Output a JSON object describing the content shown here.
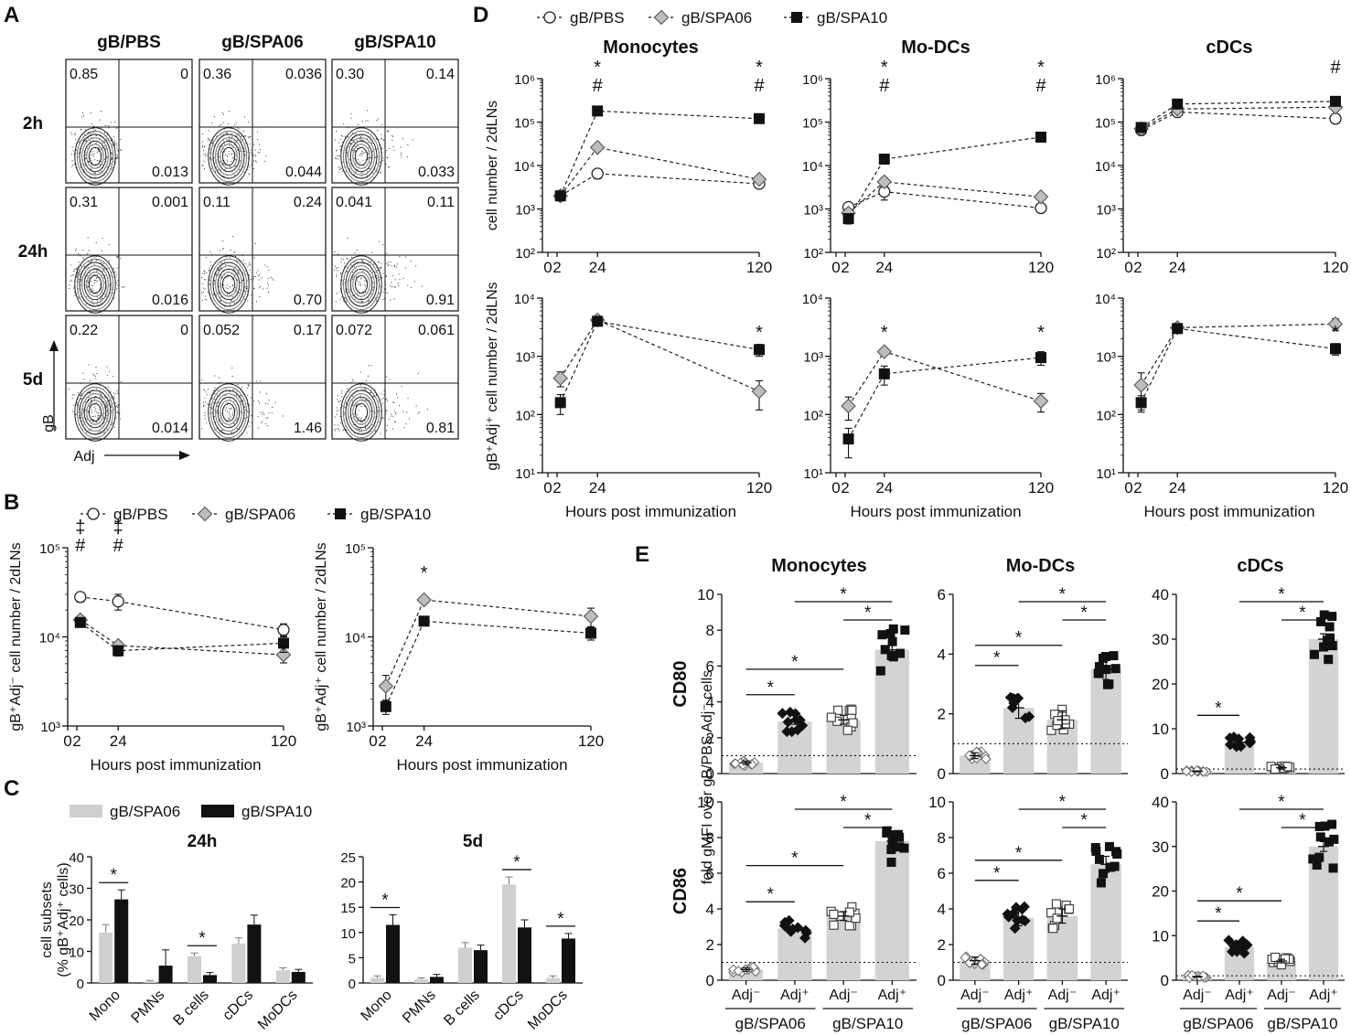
{
  "panel_letters": {
    "a": "A",
    "b": "B",
    "c": "C",
    "d": "D",
    "e": "E"
  },
  "colors": {
    "pbs": "#ffffff",
    "spa06": "#bdbdbd",
    "spa10": "#111111",
    "bar_spa06": "#cfcfcf",
    "bar_spa10": "#111111",
    "bar_e": "#d3d3d3"
  },
  "flow": {
    "groups": [
      "gB/PBS",
      "gB/SPA06",
      "gB/SPA10"
    ],
    "times": [
      "2h",
      "24h",
      "5d"
    ],
    "y_axis_label": "gB",
    "x_axis_label": "Adj",
    "quadrants": [
      [
        {
          "ul": "0.85",
          "ur": "0",
          "lr": "0.013"
        },
        {
          "ul": "0.36",
          "ur": "0.036",
          "lr": "0.044"
        },
        {
          "ul": "0.30",
          "ur": "0.14",
          "lr": "0.033"
        }
      ],
      [
        {
          "ul": "0.31",
          "ur": "0.001",
          "lr": "0.016"
        },
        {
          "ul": "0.11",
          "ur": "0.24",
          "lr": "0.70"
        },
        {
          "ul": "0.041",
          "ur": "0.11",
          "lr": "0.91"
        }
      ],
      [
        {
          "ul": "0.22",
          "ur": "0",
          "lr": "0.014"
        },
        {
          "ul": "0.052",
          "ur": "0.17",
          "lr": "1.46"
        },
        {
          "ul": "0.072",
          "ur": "0.061",
          "lr": "0.81"
        }
      ]
    ]
  },
  "legend3": [
    "gB/PBS",
    "gB/SPA06",
    "gB/SPA10"
  ],
  "legend2": [
    "gB/SPA06",
    "gB/SPA10"
  ],
  "chart_data": [
    {
      "id": "B_left",
      "type": "line",
      "xlabel": "Hours post immunization",
      "ylabel": "gB⁺Adj⁻ cell number / 2dLNs",
      "x": [
        2,
        24,
        120
      ],
      "xticks": [
        "0",
        "2",
        "24",
        "120"
      ],
      "yscale": "log",
      "ylim": [
        1000,
        100000
      ],
      "yticks": [
        "10³",
        "10⁴",
        "10⁵"
      ],
      "series": [
        {
          "name": "gB/PBS",
          "values": [
            28000,
            25000,
            12000
          ],
          "err": [
            3500,
            5000,
            2000
          ]
        },
        {
          "name": "gB/SPA06",
          "values": [
            15500,
            8000,
            6300
          ],
          "err": [
            1500,
            700,
            1200
          ]
        },
        {
          "name": "gB/SPA10",
          "values": [
            14500,
            7000,
            8500
          ],
          "err": [
            1300,
            900,
            1800
          ]
        }
      ],
      "annotations": [
        {
          "x": 2,
          "text": "‡",
          "row": 0
        },
        {
          "x": 2,
          "text": "#",
          "row": 1
        },
        {
          "x": 24,
          "text": "‡",
          "row": 0
        },
        {
          "x": 24,
          "text": "#",
          "row": 1
        }
      ]
    },
    {
      "id": "B_right",
      "type": "line",
      "xlabel": "Hours post immunization",
      "ylabel": "gB⁺Adj⁺ cell number / 2dLNs",
      "x": [
        2,
        24,
        120
      ],
      "xticks": [
        "0",
        "2",
        "24",
        "120"
      ],
      "yscale": "log",
      "ylim": [
        1000,
        100000
      ],
      "yticks": [
        "10³",
        "10⁴",
        "10⁵"
      ],
      "series": [
        {
          "name": "gB/SPA06",
          "values": [
            2800,
            26000,
            17000
          ],
          "err": [
            900,
            1500,
            4000
          ]
        },
        {
          "name": "gB/SPA10",
          "values": [
            1650,
            15000,
            11000
          ],
          "err": [
            300,
            1200,
            1800
          ]
        }
      ],
      "annotations": [
        {
          "x": 24,
          "text": "*",
          "row": 0
        }
      ]
    },
    {
      "id": "C_24h",
      "type": "bar",
      "title": "24h",
      "ylabel": "cell subsets (% gB⁺Adj⁺ cells)",
      "categories": [
        "Mono",
        "PMNs",
        "B cells",
        "cDCs",
        "MoDCs"
      ],
      "ylim": [
        0,
        40
      ],
      "yticks": [
        "0",
        "10",
        "20",
        "30",
        "40"
      ],
      "series": [
        {
          "name": "gB/SPA06",
          "values": [
            16,
            0.5,
            8.5,
            12.5,
            4
          ],
          "err": [
            2.5,
            0.3,
            1,
            1.8,
            0.8
          ]
        },
        {
          "name": "gB/SPA10",
          "values": [
            26.5,
            5.5,
            2.5,
            18.5,
            3.5
          ],
          "err": [
            3,
            5,
            0.8,
            3,
            0.8
          ]
        }
      ],
      "sig": [
        {
          "cat": 0,
          "text": "*"
        },
        {
          "cat": 2,
          "text": "*"
        }
      ]
    },
    {
      "id": "C_5d",
      "type": "bar",
      "title": "5d",
      "categories": [
        "Mono",
        "PMNs",
        "B cells",
        "cDCs",
        "MoDCs"
      ],
      "ylim": [
        0,
        25
      ],
      "yticks": [
        "0",
        "5",
        "10",
        "15",
        "20",
        "25"
      ],
      "series": [
        {
          "name": "gB/SPA06",
          "values": [
            1,
            0.7,
            7,
            19.5,
            1
          ],
          "err": [
            0.4,
            0.3,
            1,
            1.5,
            0.4
          ]
        },
        {
          "name": "gB/SPA10",
          "values": [
            11.5,
            1.2,
            6.5,
            11,
            8.8
          ],
          "err": [
            2,
            0.5,
            1,
            1.5,
            1
          ]
        }
      ],
      "sig": [
        {
          "cat": 0,
          "text": "*"
        },
        {
          "cat": 3,
          "text": "*"
        },
        {
          "cat": 4,
          "text": "*"
        }
      ]
    },
    {
      "id": "D_mono_top",
      "type": "line",
      "title": "Monocytes",
      "ylabel": "cell number / 2dLNs",
      "x": [
        2,
        24,
        120
      ],
      "yscale": "log",
      "ylim": [
        100,
        1000000
      ],
      "yticks": [
        "10²",
        "10³",
        "10⁴",
        "10⁵",
        "10⁶"
      ],
      "xticks": [
        "0",
        "2",
        "24",
        "120"
      ],
      "series": [
        {
          "name": "gB/PBS",
          "values": [
            2000,
            6500,
            3800
          ],
          "err": [
            300,
            1500,
            400
          ]
        },
        {
          "name": "gB/SPA06",
          "values": [
            2000,
            26000,
            4800
          ],
          "err": [
            300,
            2500,
            500
          ]
        },
        {
          "name": "gB/SPA10",
          "values": [
            2000,
            180000,
            120000
          ],
          "err": [
            300,
            15000,
            10000
          ]
        }
      ],
      "annotations": [
        {
          "x": 24,
          "text": "*",
          "row": 0
        },
        {
          "x": 24,
          "text": "#",
          "row": 1
        },
        {
          "x": 120,
          "text": "*",
          "row": 0
        },
        {
          "x": 120,
          "text": "#",
          "row": 1
        }
      ]
    },
    {
      "id": "D_modc_top",
      "type": "line",
      "title": "Mo-DCs",
      "x": [
        2,
        24,
        120
      ],
      "yscale": "log",
      "ylim": [
        100,
        1000000
      ],
      "yticks": [
        "10²",
        "10³",
        "10⁴",
        "10⁵",
        "10⁶"
      ],
      "xticks": [
        "0",
        "2",
        "24",
        "120"
      ],
      "series": [
        {
          "name": "gB/PBS",
          "values": [
            1100,
            2500,
            1050
          ],
          "err": [
            300,
            900,
            150
          ]
        },
        {
          "name": "gB/SPA06",
          "values": [
            800,
            4200,
            1900
          ],
          "err": [
            200,
            1000,
            300
          ]
        },
        {
          "name": "gB/SPA10",
          "values": [
            600,
            14000,
            45000
          ],
          "err": [
            150,
            2500,
            4000
          ]
        }
      ],
      "annotations": [
        {
          "x": 24,
          "text": "*",
          "row": 0
        },
        {
          "x": 24,
          "text": "#",
          "row": 1
        },
        {
          "x": 120,
          "text": "*",
          "row": 0
        },
        {
          "x": 120,
          "text": "#",
          "row": 1
        }
      ]
    },
    {
      "id": "D_cdc_top",
      "type": "line",
      "title": "cDCs",
      "x": [
        2,
        24,
        120
      ],
      "yscale": "log",
      "ylim": [
        100,
        1000000
      ],
      "yticks": [
        "10²",
        "10³",
        "10⁴",
        "10⁵",
        "10⁶"
      ],
      "xticks": [
        "0",
        "2",
        "24",
        "120"
      ],
      "series": [
        {
          "name": "gB/PBS",
          "values": [
            65000,
            170000,
            120000
          ],
          "err": [
            10000,
            25000,
            15000
          ]
        },
        {
          "name": "gB/SPA06",
          "values": [
            70000,
            200000,
            220000
          ],
          "err": [
            10000,
            30000,
            40000
          ]
        },
        {
          "name": "gB/SPA10",
          "values": [
            75000,
            260000,
            300000
          ],
          "err": [
            10000,
            35000,
            50000
          ]
        }
      ],
      "annotations": [
        {
          "x": 120,
          "text": "#",
          "row": 0
        }
      ]
    },
    {
      "id": "D_mono_bot",
      "type": "line",
      "ylabel": "gB⁺Adj⁺ cell number / 2dLNs",
      "xlabel": "Hours post immunization",
      "x": [
        2,
        24,
        120
      ],
      "yscale": "log",
      "ylim": [
        10,
        10000
      ],
      "yticks": [
        "10¹",
        "10²",
        "10³",
        "10⁴"
      ],
      "xticks": [
        "0",
        "2",
        "24",
        "120"
      ],
      "series": [
        {
          "name": "gB/SPA06",
          "values": [
            420,
            4200,
            250
          ],
          "err": [
            120,
            500,
            130
          ]
        },
        {
          "name": "gB/SPA10",
          "values": [
            160,
            4000,
            1300
          ],
          "err": [
            60,
            500,
            300
          ]
        }
      ],
      "annotations": [
        {
          "x": 120,
          "text": "*",
          "row": 0
        }
      ]
    },
    {
      "id": "D_modc_bot",
      "type": "line",
      "xlabel": "Hours post immunization",
      "x": [
        2,
        24,
        120
      ],
      "yscale": "log",
      "ylim": [
        10,
        10000
      ],
      "yticks": [
        "10¹",
        "10²",
        "10³",
        "10⁴"
      ],
      "xticks": [
        "0",
        "2",
        "24",
        "120"
      ],
      "series": [
        {
          "name": "gB/SPA06",
          "values": [
            140,
            1200,
            170
          ],
          "err": [
            60,
            150,
            60
          ]
        },
        {
          "name": "gB/SPA10",
          "values": [
            38,
            500,
            950
          ],
          "err": [
            20,
            180,
            250
          ]
        }
      ],
      "annotations": [
        {
          "x": 24,
          "text": "*",
          "row": 0
        },
        {
          "x": 120,
          "text": "*",
          "row": 0
        }
      ]
    },
    {
      "id": "D_cdc_bot",
      "type": "line",
      "xlabel": "Hours post immunization",
      "x": [
        2,
        24,
        120
      ],
      "yscale": "log",
      "ylim": [
        10,
        10000
      ],
      "yticks": [
        "10¹",
        "10²",
        "10³",
        "10⁴"
      ],
      "xticks": [
        "0",
        "2",
        "24",
        "120"
      ],
      "series": [
        {
          "name": "gB/SPA06",
          "values": [
            320,
            3100,
            3600
          ],
          "err": [
            200,
            400,
            800
          ]
        },
        {
          "name": "gB/SPA10",
          "values": [
            160,
            3000,
            1350
          ],
          "err": [
            50,
            300,
            300
          ]
        }
      ],
      "annotations": [
        {
          "x": 120,
          "text": "*",
          "row": 0
        }
      ]
    },
    {
      "id": "E_mono_cd80",
      "type": "scatter-bar",
      "title": "Monocytes",
      "row_label": "CD80",
      "ylim": [
        0,
        10
      ],
      "yticks": [
        "0",
        "2",
        "4",
        "6",
        "8",
        "10"
      ],
      "means": [
        0.6,
        2.9,
        3.0,
        6.9
      ],
      "sems": [
        0.1,
        0.15,
        0.25,
        0.35
      ],
      "baseline": 1,
      "sig": [
        [
          1,
          3
        ],
        [
          2,
          3
        ],
        [
          0,
          1
        ],
        [
          0,
          2
        ]
      ]
    },
    {
      "id": "E_modc_cd80",
      "type": "scatter-bar",
      "title": "Mo-DCs",
      "ylim": [
        0,
        6
      ],
      "yticks": [
        "0",
        "2",
        "4",
        "6"
      ],
      "means": [
        0.6,
        2.2,
        1.8,
        3.5
      ],
      "sems": [
        0.1,
        0.35,
        0.3,
        0.35
      ],
      "baseline": 1,
      "sig": [
        [
          1,
          3
        ],
        [
          2,
          3
        ],
        [
          0,
          1
        ],
        [
          0,
          2
        ]
      ]
    },
    {
      "id": "E_cdc_cd80",
      "type": "scatter-bar",
      "title": "cDCs",
      "ylim": [
        0,
        40
      ],
      "yticks": [
        "0",
        "10",
        "20",
        "30",
        "40"
      ],
      "means": [
        0.5,
        7,
        1.3,
        30
      ],
      "sems": [
        0.1,
        0.6,
        0.3,
        1.2
      ],
      "baseline": 1,
      "sig": [
        [
          1,
          3
        ],
        [
          2,
          3
        ],
        [
          0,
          1
        ]
      ]
    },
    {
      "id": "E_mono_cd86",
      "type": "scatter-bar",
      "row_label": "CD86",
      "ylabel": "fold gMFI over gB/PBS Adj⁻ cells",
      "ylim": [
        0,
        10
      ],
      "yticks": [
        "0",
        "2",
        "4",
        "6",
        "8",
        "10"
      ],
      "means": [
        0.6,
        2.9,
        3.6,
        7.8
      ],
      "sems": [
        0.1,
        0.15,
        0.25,
        0.3
      ],
      "baseline": 1,
      "sig": [
        [
          1,
          3
        ],
        [
          2,
          3
        ],
        [
          0,
          1
        ],
        [
          0,
          2
        ]
      ]
    },
    {
      "id": "E_modc_cd86",
      "type": "scatter-bar",
      "ylim": [
        0,
        10
      ],
      "yticks": [
        "0",
        "2",
        "4",
        "6",
        "8",
        "10"
      ],
      "means": [
        1.1,
        3.5,
        3.6,
        6.5
      ],
      "sems": [
        0.2,
        0.45,
        0.4,
        0.45
      ],
      "baseline": 1,
      "sig": [
        [
          1,
          3
        ],
        [
          2,
          3
        ],
        [
          0,
          1
        ],
        [
          0,
          2
        ]
      ]
    },
    {
      "id": "E_cdc_cd86",
      "type": "scatter-bar",
      "ylim": [
        0,
        40
      ],
      "yticks": [
        "0",
        "10",
        "20",
        "30",
        "40"
      ],
      "means": [
        0.8,
        7.5,
        4.3,
        30
      ],
      "sems": [
        0.1,
        0.5,
        0.4,
        1.1
      ],
      "baseline": 1,
      "sig": [
        [
          1,
          3
        ],
        [
          2,
          3
        ],
        [
          0,
          1
        ],
        [
          0,
          2
        ]
      ]
    }
  ],
  "e_xlabels": {
    "cats": [
      "Adj⁻",
      "Adj⁺",
      "Adj⁻",
      "Adj⁺"
    ],
    "groups": [
      "gB/SPA06",
      "gB/SPA10"
    ]
  },
  "sig_star": "*"
}
